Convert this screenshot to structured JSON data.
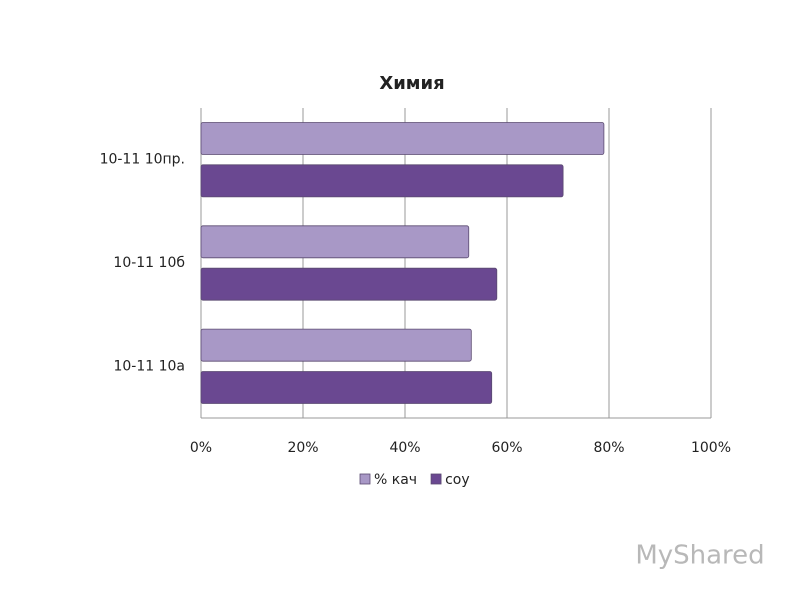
{
  "chart_data": {
    "type": "hbar",
    "title": "Химия",
    "categories": [
      "10-11 10а",
      "10-11 10б",
      "10-11 10пр."
    ],
    "series": [
      {
        "name": "% кач",
        "color": "#a898c6",
        "values": [
          53,
          52.5,
          79
        ]
      },
      {
        "name": "соу",
        "color": "#6a4891",
        "values": [
          57,
          58,
          71
        ]
      }
    ],
    "xlim": [
      0,
      100
    ],
    "xticks": [
      {
        "value": 0,
        "label": "0%"
      },
      {
        "value": 20,
        "label": "20%"
      },
      {
        "value": 40,
        "label": "40%"
      },
      {
        "value": 60,
        "label": "60%"
      },
      {
        "value": 80,
        "label": "80%"
      },
      {
        "value": 100,
        "label": "100%"
      }
    ],
    "grid": true,
    "legend": "bottom"
  },
  "watermark": "MyShared"
}
